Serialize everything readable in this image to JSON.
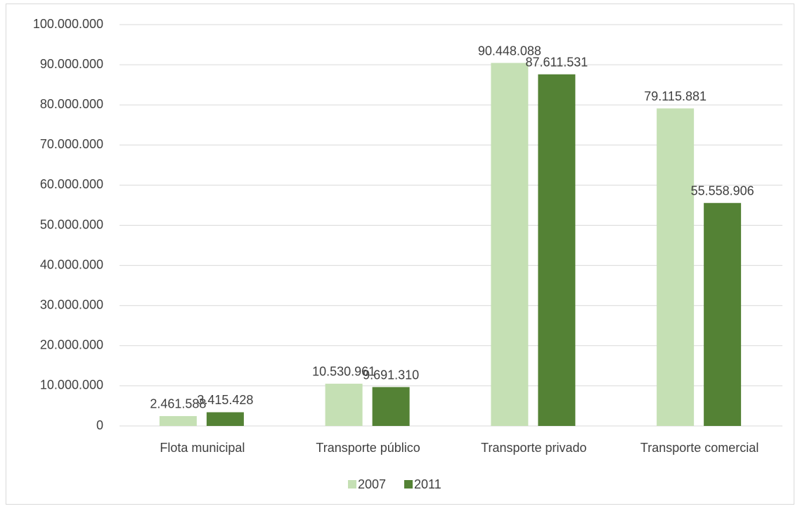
{
  "chart_data": {
    "type": "bar",
    "categories": [
      "Flota municipal",
      "Transporte público",
      "Transporte privado",
      "Transporte comercial"
    ],
    "series": [
      {
        "name": "2007",
        "color": "#c5e0b4",
        "values": [
          2461588,
          10530961,
          90448088,
          79115881
        ],
        "value_labels": [
          "2.461.588",
          "10.530.961",
          "90.448.088",
          "79.115.881"
        ]
      },
      {
        "name": "2011",
        "color": "#548235",
        "values": [
          3415428,
          9691310,
          87611531,
          55558906
        ],
        "value_labels": [
          "3.415.428",
          "9.691.310",
          "87.611.531",
          "55.558.906"
        ]
      }
    ],
    "ylim": [
      0,
      100000000
    ],
    "yticks": [
      0,
      {
        "value": 10000000,
        "label": "10.000.000"
      },
      {
        "value": 20000000,
        "label": "20.000.000"
      },
      {
        "value": 30000000,
        "label": "30.000.000"
      },
      {
        "value": 40000000,
        "label": "40.000.000"
      },
      {
        "value": 50000000,
        "label": "50.000.000"
      },
      {
        "value": 60000000,
        "label": "60.000.000"
      },
      {
        "value": 70000000,
        "label": "70.000.000"
      },
      {
        "value": 80000000,
        "label": "80.000.000"
      },
      {
        "value": 90000000,
        "label": "90.000.000"
      },
      {
        "value": 100000000,
        "label": "100.000.000"
      }
    ],
    "grid": true,
    "legend": "bottom"
  }
}
